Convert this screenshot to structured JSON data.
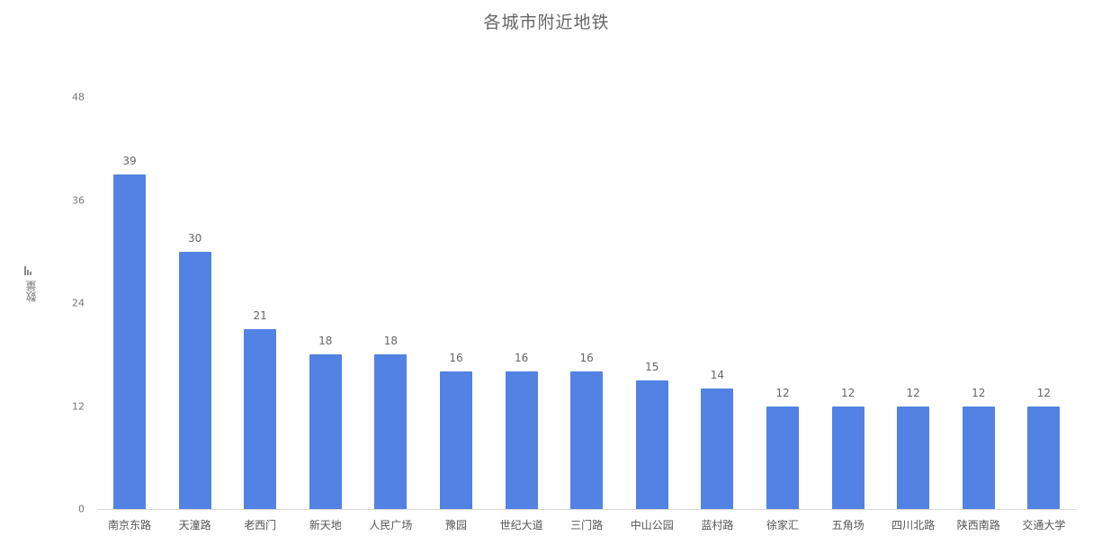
{
  "chart_data": {
    "type": "bar",
    "title": "各城市附近地铁",
    "xlabel": "",
    "ylabel": "数量",
    "categories": [
      "南京东路",
      "天潼路",
      "老西门",
      "新天地",
      "人民广场",
      "豫园",
      "世纪大道",
      "三门路",
      "中山公园",
      "蓝村路",
      "徐家汇",
      "五角场",
      "四川北路",
      "陕西南路",
      "交通大学"
    ],
    "values": [
      39,
      30,
      21,
      18,
      18,
      16,
      16,
      16,
      15,
      14,
      12,
      12,
      12,
      12,
      12
    ],
    "yticks": [
      "0",
      "12",
      "24",
      "36",
      "48"
    ],
    "ylim": [
      0,
      48
    ],
    "grid": false,
    "legend": "none",
    "data_labels": true,
    "bar_color": "#5282e3"
  }
}
